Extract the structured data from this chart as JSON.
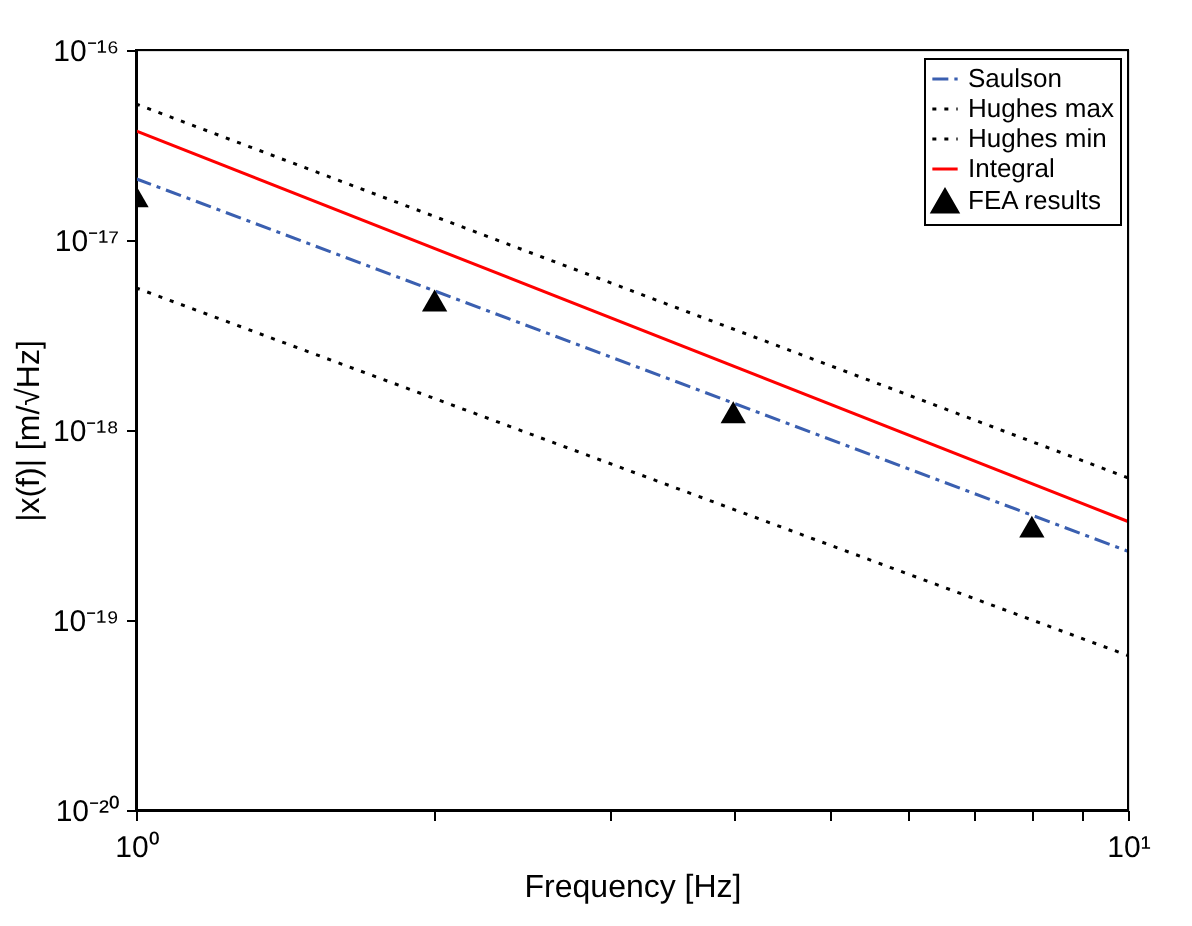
{
  "chart_data": {
    "type": "line",
    "xlabel": "Frequency [Hz]",
    "ylabel": "|x(f)| [m/√Hz]",
    "log": "xy",
    "grid": false,
    "legend": "top right",
    "xlim": [
      1,
      10
    ],
    "ylim": [
      1e-20,
      1e-16
    ],
    "xticks": [
      {
        "value": 1,
        "label": "10⁰"
      },
      {
        "value": 2,
        "label": null
      },
      {
        "value": 3,
        "label": null
      },
      {
        "value": 4,
        "label": null
      },
      {
        "value": 5,
        "label": null
      },
      {
        "value": 6,
        "label": null
      },
      {
        "value": 7,
        "label": null
      },
      {
        "value": 8,
        "label": null
      },
      {
        "value": 9,
        "label": null
      },
      {
        "value": 10,
        "label": "10¹"
      }
    ],
    "yticks": [
      {
        "value": 1e-20,
        "label": "10⁻²⁰"
      },
      {
        "value": 1e-19,
        "label": "10⁻¹⁹"
      },
      {
        "value": 1e-18,
        "label": "10⁻¹⁸"
      },
      {
        "value": 1e-17,
        "label": "10⁻¹⁷"
      },
      {
        "value": 1e-16,
        "label": "10⁻¹⁶"
      }
    ],
    "series": [
      {
        "name": "Saulson",
        "color": "#3a5fb0",
        "line_style": "dashdot",
        "marker": "none",
        "x": [
          1,
          10
        ],
        "values": [
          2.1e-17,
          2.3e-19
        ]
      },
      {
        "name": "Hughes max",
        "color": "#000000",
        "line_style": "dotted",
        "marker": "none",
        "x": [
          1,
          10
        ],
        "values": [
          5.2e-17,
          5.6e-19
        ]
      },
      {
        "name": "Hughes min",
        "color": "#000000",
        "line_style": "dotted",
        "marker": "none",
        "x": [
          1,
          10
        ],
        "values": [
          5.6e-18,
          6.5e-20
        ]
      },
      {
        "name": "Integral",
        "color": "#ff0000",
        "line_style": "solid",
        "marker": "none",
        "x": [
          1,
          10
        ],
        "values": [
          3.75e-17,
          3.3e-19
        ]
      },
      {
        "name": "FEA results",
        "type": "scatter",
        "color": "#000000",
        "marker": "triangle",
        "x": [
          1,
          2,
          4,
          8
        ],
        "values": [
          1.7e-17,
          4.8e-18,
          1.24e-18,
          3.1e-19
        ]
      }
    ]
  }
}
